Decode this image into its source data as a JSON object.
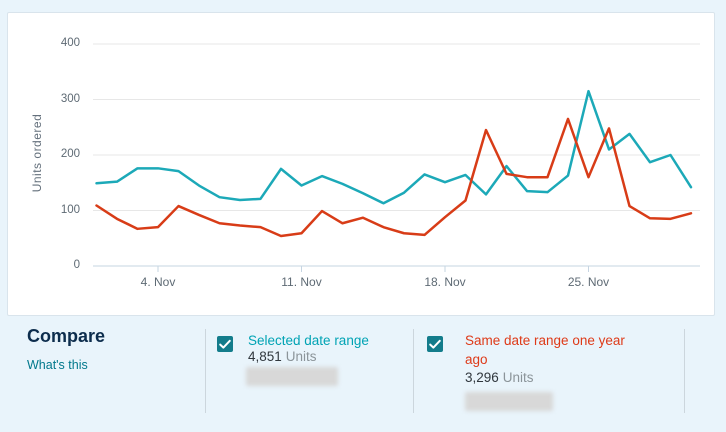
{
  "page": {
    "background": "#E9F4FB"
  },
  "chart_data": {
    "type": "line",
    "title": "",
    "xlabel": "",
    "ylabel": "Units ordered",
    "ylim": [
      0,
      400
    ],
    "y_ticks": [
      0,
      100,
      200,
      300,
      400
    ],
    "grid": "horizontal",
    "legend_position": "bottom",
    "x_days": [
      1,
      2,
      3,
      4,
      5,
      6,
      7,
      8,
      9,
      10,
      11,
      12,
      13,
      14,
      15,
      16,
      17,
      18,
      19,
      20,
      21,
      22,
      23,
      24,
      25,
      26,
      27,
      28,
      29,
      30
    ],
    "x_tick_labels": [
      {
        "index": 3,
        "label": "4. Nov"
      },
      {
        "index": 10,
        "label": "11. Nov"
      },
      {
        "index": 17,
        "label": "18. Nov"
      },
      {
        "index": 24,
        "label": "25. Nov"
      }
    ],
    "series": [
      {
        "name": "Selected date range",
        "color": "#1CA9B8",
        "total_label": "4,851 Units",
        "values": [
          149,
          152,
          176,
          176,
          171,
          145,
          124,
          119,
          121,
          175,
          145,
          162,
          148,
          131,
          113,
          132,
          165,
          151,
          164,
          129,
          180,
          135,
          133,
          163,
          315,
          210,
          238,
          187,
          200,
          142
        ]
      },
      {
        "name": "Same date range one year ago",
        "color": "#D83C17",
        "total_label": "3,296 Units",
        "values": [
          109,
          85,
          67,
          70,
          108,
          92,
          77,
          73,
          70,
          54,
          59,
          99,
          77,
          87,
          70,
          59,
          56,
          88,
          118,
          245,
          166,
          160,
          160,
          265,
          160,
          248,
          108,
          86,
          85,
          95
        ]
      }
    ]
  },
  "compare": {
    "heading": "Compare",
    "whats_this_label": "What's this"
  },
  "legend": [
    {
      "label": "Selected date range",
      "value": "4,851",
      "unit": "Units",
      "label_color": "#00A3B4",
      "checked": true,
      "redacted_row": true
    },
    {
      "label": "Same date range one year ago",
      "value": "3,296",
      "unit": "Units",
      "label_color": "#DE3A18",
      "checked": true,
      "redacted_row": true
    }
  ],
  "checkbox_color": "#137C8B"
}
